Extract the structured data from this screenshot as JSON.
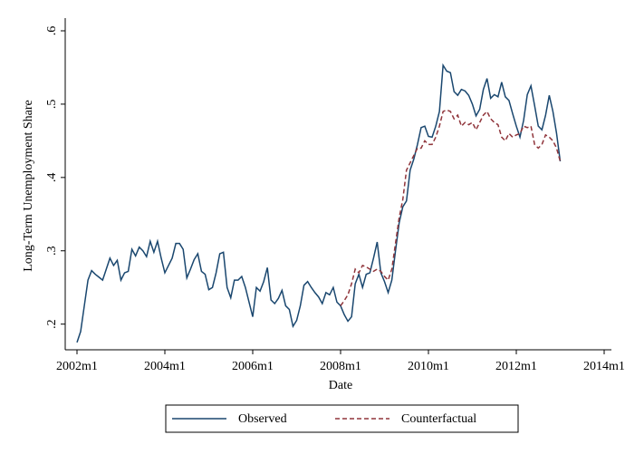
{
  "chart_data": {
    "type": "line",
    "x_label": "Date",
    "y_label": "Long-Term Unemployment Share",
    "x": [
      "2002m1",
      "2002m2",
      "2002m3",
      "2002m4",
      "2002m5",
      "2002m6",
      "2002m7",
      "2002m8",
      "2002m9",
      "2002m10",
      "2002m11",
      "2002m12",
      "2003m1",
      "2003m2",
      "2003m3",
      "2003m4",
      "2003m5",
      "2003m6",
      "2003m7",
      "2003m8",
      "2003m9",
      "2003m10",
      "2003m11",
      "2003m12",
      "2004m1",
      "2004m2",
      "2004m3",
      "2004m4",
      "2004m5",
      "2004m6",
      "2004m7",
      "2004m8",
      "2004m9",
      "2004m10",
      "2004m11",
      "2004m12",
      "2005m1",
      "2005m2",
      "2005m3",
      "2005m4",
      "2005m5",
      "2005m6",
      "2005m7",
      "2005m8",
      "2005m9",
      "2005m10",
      "2005m11",
      "2005m12",
      "2006m1",
      "2006m2",
      "2006m3",
      "2006m4",
      "2006m5",
      "2006m6",
      "2006m7",
      "2006m8",
      "2006m9",
      "2006m10",
      "2006m11",
      "2006m12",
      "2007m1",
      "2007m2",
      "2007m3",
      "2007m4",
      "2007m5",
      "2007m6",
      "2007m7",
      "2007m8",
      "2007m9",
      "2007m10",
      "2007m11",
      "2007m12",
      "2008m1",
      "2008m2",
      "2008m3",
      "2008m4",
      "2008m5",
      "2008m6",
      "2008m7",
      "2008m8",
      "2008m9",
      "2008m10",
      "2008m11",
      "2008m12",
      "2009m1",
      "2009m2",
      "2009m3",
      "2009m4",
      "2009m5",
      "2009m6",
      "2009m7",
      "2009m8",
      "2009m9",
      "2009m10",
      "2009m11",
      "2009m12",
      "2010m1",
      "2010m2",
      "2010m3",
      "2010m4",
      "2010m5",
      "2010m6",
      "2010m7",
      "2010m8",
      "2010m9",
      "2010m10",
      "2010m11",
      "2010m12",
      "2011m1",
      "2011m2",
      "2011m3",
      "2011m4",
      "2011m5",
      "2011m6",
      "2011m7",
      "2011m8",
      "2011m9",
      "2011m10",
      "2011m11",
      "2011m12",
      "2012m1",
      "2012m2",
      "2012m3",
      "2012m4",
      "2012m5",
      "2012m6",
      "2012m7",
      "2012m8",
      "2012m9",
      "2012m10",
      "2012m11",
      "2012m12",
      "2013m1"
    ],
    "series": [
      {
        "name": "Observed",
        "color": "#1a476f",
        "dash": false,
        "values": [
          0.175,
          0.19,
          0.225,
          0.26,
          0.273,
          0.268,
          0.264,
          0.26,
          0.275,
          0.29,
          0.28,
          0.287,
          0.26,
          0.27,
          0.272,
          0.302,
          0.293,
          0.305,
          0.3,
          0.292,
          0.313,
          0.298,
          0.313,
          0.29,
          0.27,
          0.28,
          0.29,
          0.31,
          0.31,
          0.302,
          0.263,
          0.275,
          0.288,
          0.296,
          0.272,
          0.268,
          0.247,
          0.25,
          0.27,
          0.296,
          0.298,
          0.25,
          0.236,
          0.26,
          0.26,
          0.265,
          0.25,
          0.23,
          0.21,
          0.25,
          0.245,
          0.258,
          0.277,
          0.233,
          0.228,
          0.235,
          0.246,
          0.225,
          0.22,
          0.197,
          0.205,
          0.225,
          0.253,
          0.258,
          0.25,
          0.243,
          0.237,
          0.228,
          0.243,
          0.24,
          0.25,
          0.23,
          0.225,
          0.213,
          0.204,
          0.21,
          0.255,
          0.268,
          0.25,
          0.268,
          0.27,
          0.29,
          0.312,
          0.27,
          0.258,
          0.243,
          0.26,
          0.3,
          0.338,
          0.36,
          0.368,
          0.41,
          0.425,
          0.445,
          0.468,
          0.47,
          0.456,
          0.455,
          0.47,
          0.49,
          0.553,
          0.545,
          0.543,
          0.517,
          0.512,
          0.52,
          0.518,
          0.512,
          0.5,
          0.484,
          0.493,
          0.52,
          0.535,
          0.508,
          0.513,
          0.51,
          0.53,
          0.51,
          0.505,
          0.487,
          0.47,
          0.455,
          0.478,
          0.513,
          0.525,
          0.498,
          0.47,
          0.465,
          0.485,
          0.512,
          0.49,
          0.46,
          0.422
        ]
      },
      {
        "name": "Counterfactual",
        "color": "#90353b",
        "dash": true,
        "values": [
          null,
          null,
          null,
          null,
          null,
          null,
          null,
          null,
          null,
          null,
          null,
          null,
          null,
          null,
          null,
          null,
          null,
          null,
          null,
          null,
          null,
          null,
          null,
          null,
          null,
          null,
          null,
          null,
          null,
          null,
          null,
          null,
          null,
          null,
          null,
          null,
          null,
          null,
          null,
          null,
          null,
          null,
          null,
          null,
          null,
          null,
          null,
          null,
          null,
          null,
          null,
          null,
          null,
          null,
          null,
          null,
          null,
          null,
          null,
          null,
          null,
          null,
          null,
          null,
          null,
          null,
          null,
          null,
          null,
          null,
          null,
          null,
          0.225,
          0.232,
          0.24,
          0.255,
          0.275,
          0.27,
          0.28,
          0.278,
          0.275,
          0.272,
          0.275,
          0.272,
          0.265,
          0.26,
          0.275,
          0.31,
          0.345,
          0.37,
          0.41,
          0.42,
          0.43,
          0.44,
          0.44,
          0.45,
          0.445,
          0.445,
          0.455,
          0.47,
          0.49,
          0.492,
          0.49,
          0.48,
          0.485,
          0.47,
          0.475,
          0.472,
          0.475,
          0.465,
          0.475,
          0.485,
          0.49,
          0.48,
          0.475,
          0.472,
          0.455,
          0.45,
          0.46,
          0.455,
          0.458,
          0.46,
          0.47,
          0.468,
          0.47,
          0.445,
          0.44,
          0.445,
          0.458,
          0.455,
          0.45,
          0.44,
          0.422
        ]
      }
    ],
    "xlim": [
      "2002m1",
      "2014m1"
    ],
    "xticks": [
      "2002m1",
      "2004m1",
      "2006m1",
      "2008m1",
      "2010m1",
      "2012m1",
      "2014m1"
    ],
    "ylim": [
      0.165,
      0.6
    ],
    "yticks": [
      {
        "value": 0.2,
        "label": ".2"
      },
      {
        "value": 0.3,
        "label": ".3"
      },
      {
        "value": 0.4,
        "label": ".4"
      },
      {
        "value": 0.5,
        "label": ".5"
      },
      {
        "value": 0.6,
        "label": ".6"
      }
    ],
    "legend": "bottom"
  }
}
